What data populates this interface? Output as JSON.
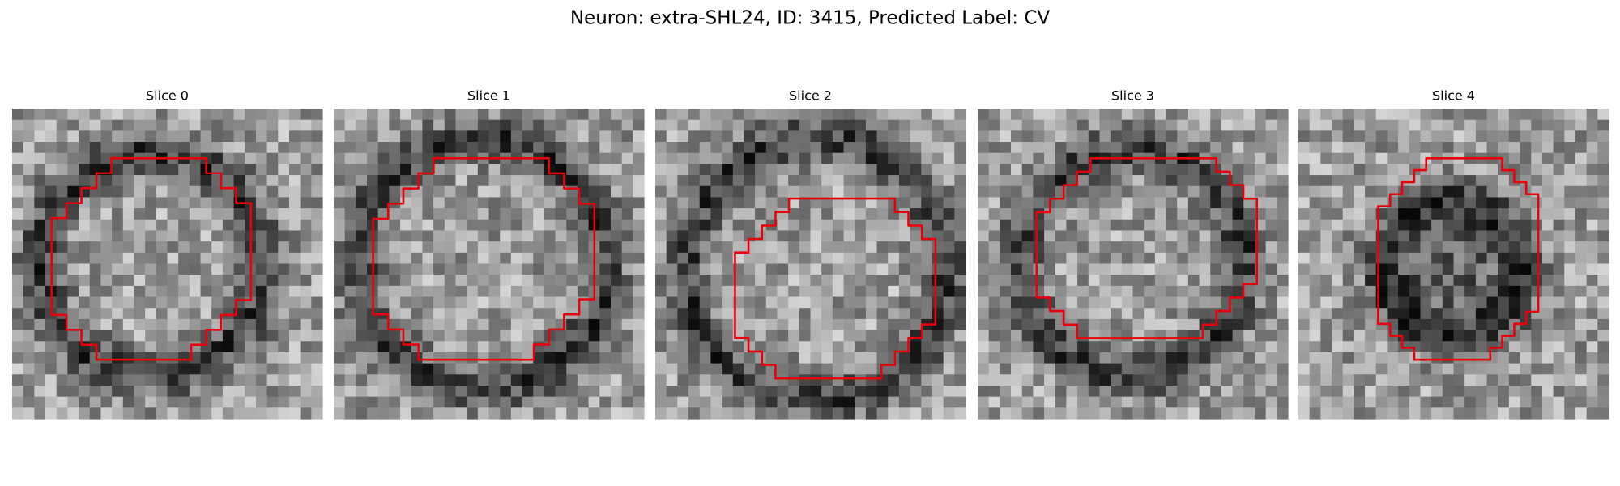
{
  "title": "Neuron: extra-SHL24, ID: 3415, Predicted Label: CV",
  "panels": [
    {
      "title": "Slice 0"
    },
    {
      "title": "Slice 1"
    },
    {
      "title": "Slice 2"
    },
    {
      "title": "Slice 3"
    },
    {
      "title": "Slice 4"
    }
  ]
}
